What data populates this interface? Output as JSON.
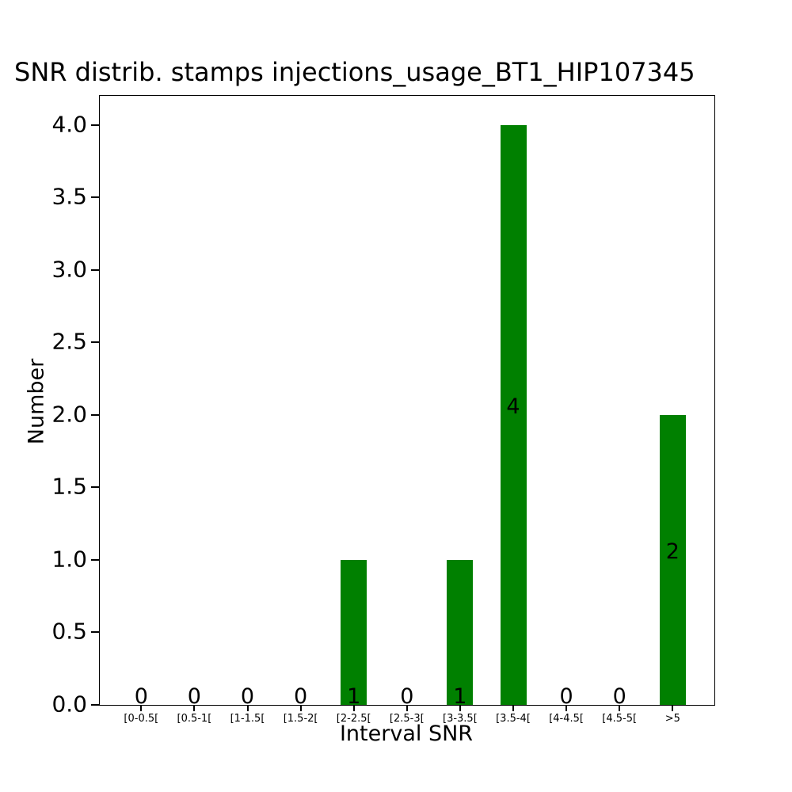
{
  "title": "SNR distrib. stamps injections_usage_BT1_HIP107345",
  "chart_data": {
    "type": "bar",
    "title": "SNR distrib. stamps injections_usage_BT1_HIP107345",
    "categories": [
      "[0-0.5[",
      "[0.5-1[",
      "[1-1.5[",
      "[1.5-2[",
      "[2-2.5[",
      "[2.5-3[",
      "[3-3.5[",
      "[3.5-4[",
      "[4-4.5[",
      "[4.5-5[",
      ">5"
    ],
    "values": [
      0,
      0,
      0,
      0,
      1,
      0,
      1,
      4,
      0,
      0,
      2
    ],
    "bar_labels": [
      "0",
      "0",
      "0",
      "0",
      "1",
      "0",
      "1",
      "4",
      "0",
      "0",
      "2"
    ],
    "xlabel": "Interval SNR",
    "ylabel": "Number",
    "yticks": [
      "0.0",
      "0.5",
      "1.0",
      "1.5",
      "2.0",
      "2.5",
      "3.0",
      "3.5",
      "4.0"
    ],
    "ylim": [
      0,
      4.2
    ],
    "bar_color": "#008000",
    "text_color": "#000000",
    "grid": false,
    "legend": "none"
  }
}
